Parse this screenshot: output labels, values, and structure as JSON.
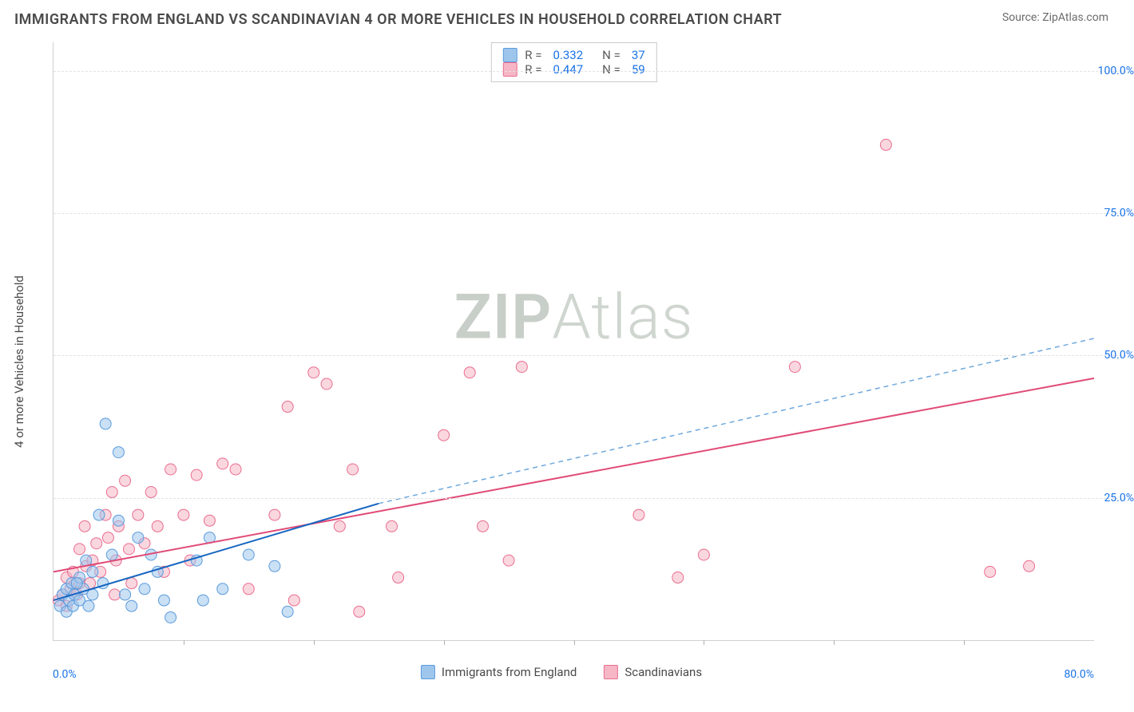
{
  "header": {
    "title": "IMMIGRANTS FROM ENGLAND VS SCANDINAVIAN 4 OR MORE VEHICLES IN HOUSEHOLD CORRELATION CHART",
    "source_prefix": "Source: ",
    "source_name": "ZipAtlas.com"
  },
  "watermark": {
    "zip": "ZIP",
    "atlas": "Atlas"
  },
  "legend_top": {
    "rows": [
      {
        "key": "series_a",
        "r_label": "R =",
        "r_value": "0.332",
        "n_label": "N =",
        "n_value": "37"
      },
      {
        "key": "series_b",
        "r_label": "R =",
        "r_value": "0.447",
        "n_label": "N =",
        "n_value": "59"
      }
    ]
  },
  "legend_bottom": {
    "items": [
      {
        "key": "series_a",
        "label": "Immigrants from England"
      },
      {
        "key": "series_b",
        "label": "Scandinavians"
      }
    ]
  },
  "axes": {
    "y_label": "4 or more Vehicles in Household",
    "x_origin": "0.0%",
    "x_end": "80.0%",
    "x_min": 0,
    "x_max": 80,
    "y_min": 0,
    "y_max": 105,
    "y_ticks": [
      {
        "v": 25,
        "label": "25.0%"
      },
      {
        "v": 50,
        "label": "50.0%"
      },
      {
        "v": 75,
        "label": "75.0%"
      },
      {
        "v": 100,
        "label": "100.0%"
      }
    ],
    "x_tick_step": 10,
    "grid_color": "#e2e2e2",
    "tick_label_color": "#1a73e8",
    "axis_label_color": "#4a4a4a"
  },
  "series": {
    "series_a": {
      "name": "Immigrants from England",
      "color_fill": "#9ec6ec",
      "color_stroke": "#5a9bdc",
      "fill_opacity": 0.55,
      "marker_radius": 7,
      "trend": {
        "x1": 0,
        "y1": 7,
        "x2": 25,
        "y2": 24,
        "stroke": "#1565c0",
        "width": 2,
        "dash": ""
      },
      "trend_ext": {
        "x1": 25,
        "y1": 24,
        "x2": 80,
        "y2": 53,
        "stroke": "#6fa8dc",
        "width": 1.5,
        "dash": "6 5"
      },
      "points": [
        [
          0.5,
          6
        ],
        [
          0.7,
          8
        ],
        [
          1,
          5
        ],
        [
          1,
          9
        ],
        [
          1.2,
          7
        ],
        [
          1.4,
          10
        ],
        [
          1.5,
          6
        ],
        [
          1.6,
          8
        ],
        [
          2,
          11
        ],
        [
          2,
          7
        ],
        [
          2.3,
          9
        ],
        [
          2.5,
          14
        ],
        [
          2.7,
          6
        ],
        [
          3,
          12
        ],
        [
          3,
          8
        ],
        [
          3.5,
          22
        ],
        [
          3.8,
          10
        ],
        [
          4,
          38
        ],
        [
          4.5,
          15
        ],
        [
          5,
          33
        ],
        [
          5,
          21
        ],
        [
          5.5,
          8
        ],
        [
          6,
          6
        ],
        [
          6.5,
          18
        ],
        [
          7,
          9
        ],
        [
          7.5,
          15
        ],
        [
          8,
          12
        ],
        [
          8.5,
          7
        ],
        [
          9,
          4
        ],
        [
          11,
          14
        ],
        [
          11.5,
          7
        ],
        [
          12,
          18
        ],
        [
          13,
          9
        ],
        [
          15,
          15
        ],
        [
          17,
          13
        ],
        [
          18,
          5
        ],
        [
          1.8,
          10
        ]
      ]
    },
    "series_b": {
      "name": "Scandinavians",
      "color_fill": "#f6b6c5",
      "color_stroke": "#e96d8f",
      "fill_opacity": 0.55,
      "marker_radius": 7,
      "trend": {
        "x1": 0,
        "y1": 12,
        "x2": 80,
        "y2": 46,
        "stroke": "#e14b77",
        "width": 2,
        "dash": ""
      },
      "points": [
        [
          0.4,
          7
        ],
        [
          0.7,
          8
        ],
        [
          1,
          6
        ],
        [
          1,
          11
        ],
        [
          1.3,
          9
        ],
        [
          1.5,
          12
        ],
        [
          1.8,
          8
        ],
        [
          2,
          16
        ],
        [
          2,
          10
        ],
        [
          2.4,
          20
        ],
        [
          2.5,
          13
        ],
        [
          2.8,
          10
        ],
        [
          3,
          14
        ],
        [
          3.3,
          17
        ],
        [
          3.6,
          12
        ],
        [
          4,
          22
        ],
        [
          4.2,
          18
        ],
        [
          4.5,
          26
        ],
        [
          4.8,
          14
        ],
        [
          5,
          20
        ],
        [
          5.5,
          28
        ],
        [
          5.8,
          16
        ],
        [
          6,
          10
        ],
        [
          6.5,
          22
        ],
        [
          7,
          17
        ],
        [
          7.5,
          26
        ],
        [
          8,
          20
        ],
        [
          8.5,
          12
        ],
        [
          9,
          30
        ],
        [
          10,
          22
        ],
        [
          10.5,
          14
        ],
        [
          11,
          29
        ],
        [
          12,
          21
        ],
        [
          13,
          31
        ],
        [
          14,
          30
        ],
        [
          15,
          9
        ],
        [
          17,
          22
        ],
        [
          18,
          41
        ],
        [
          18.5,
          7
        ],
        [
          20,
          47
        ],
        [
          21,
          45
        ],
        [
          22,
          20
        ],
        [
          23,
          30
        ],
        [
          23.5,
          5
        ],
        [
          26,
          20
        ],
        [
          26.5,
          11
        ],
        [
          30,
          36
        ],
        [
          32,
          47
        ],
        [
          33,
          20
        ],
        [
          35,
          14
        ],
        [
          36,
          48
        ],
        [
          45,
          22
        ],
        [
          48,
          11
        ],
        [
          50,
          15
        ],
        [
          57,
          48
        ],
        [
          64,
          87
        ],
        [
          72,
          12
        ],
        [
          75,
          13
        ],
        [
          4.7,
          8
        ]
      ]
    }
  },
  "style": {
    "background_color": "#ffffff",
    "title_fontsize": 18,
    "axis_label_fontsize": 15,
    "tick_fontsize": 14,
    "legend_fontsize": 15
  }
}
